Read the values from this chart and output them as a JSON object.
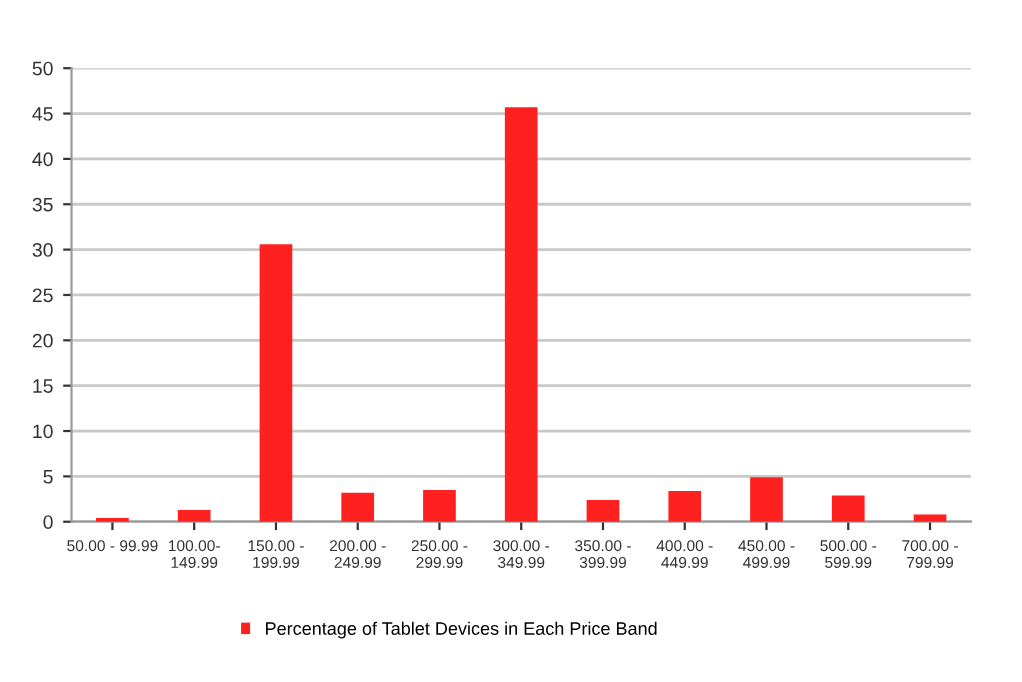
{
  "chart_data": {
    "type": "bar",
    "categories": [
      "50.00 - 99.99",
      "100.00-\n149.99",
      "150.00 -\n199.99",
      "200.00 -\n249.99",
      "250.00 -\n299.99",
      "300.00 -\n349.99",
      "350.00 -\n399.99",
      "400.00 -\n449.99",
      "450.00 -\n499.99",
      "500.00 -\n599.99",
      "700.00 -\n799.99"
    ],
    "series": [
      {
        "name": "Percentage of Tablet Devices in Each Price Band",
        "color": "#ff2020",
        "values": [
          0.4,
          1.3,
          30.6,
          3.2,
          3.5,
          45.7,
          2.4,
          3.4,
          4.9,
          2.9,
          0.8
        ]
      }
    ],
    "ylim": [
      0,
      50
    ],
    "yticks": [
      0,
      5,
      10,
      15,
      20,
      25,
      30,
      35,
      40,
      45,
      50
    ],
    "grid": "y",
    "legend": "bottom left"
  }
}
